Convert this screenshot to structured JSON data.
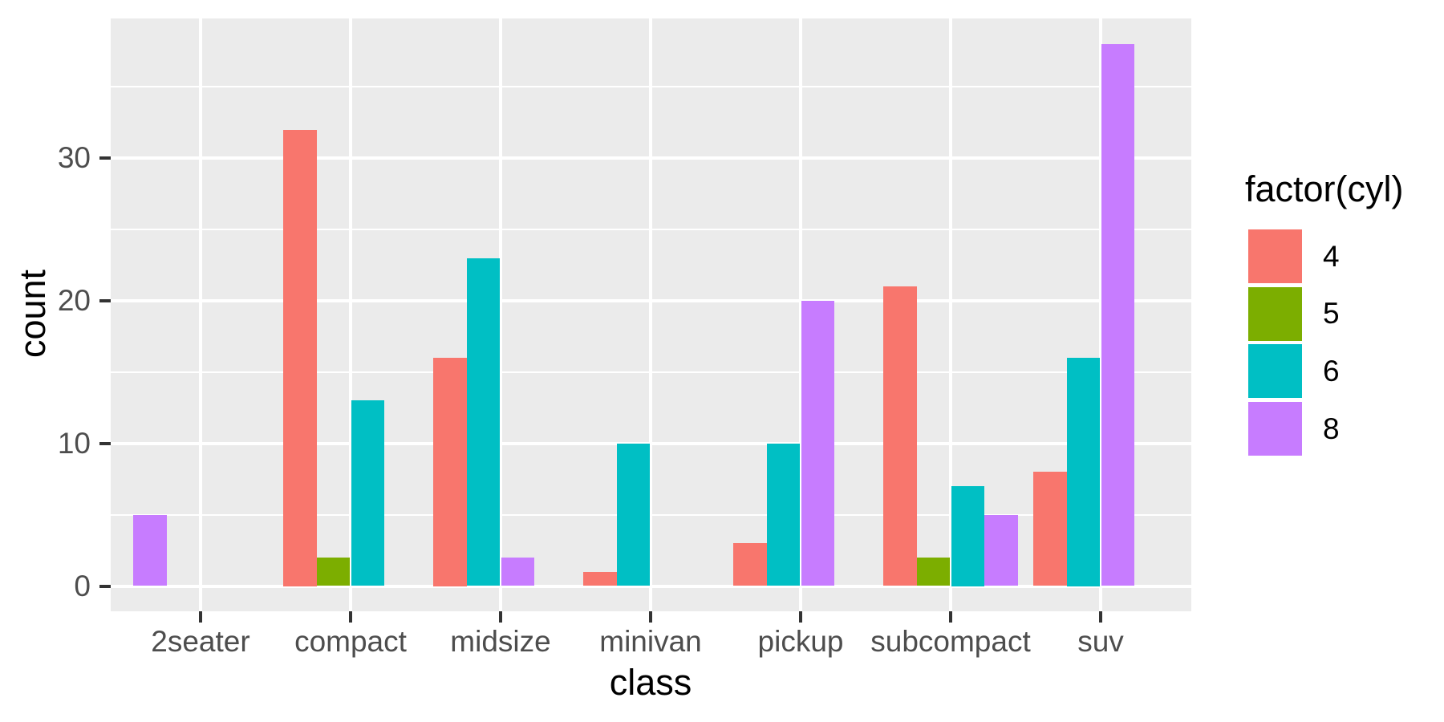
{
  "chart_data": {
    "type": "bar",
    "mode": "grouped-dodge",
    "title": "",
    "xlabel": "class",
    "ylabel": "count",
    "categories": [
      "2seater",
      "compact",
      "midsize",
      "minivan",
      "pickup",
      "subcompact",
      "suv"
    ],
    "series": [
      {
        "name": "4",
        "color": "#F8766D",
        "values": [
          null,
          32,
          16,
          1,
          3,
          21,
          8
        ]
      },
      {
        "name": "5",
        "color": "#7CAE00",
        "values": [
          null,
          2,
          null,
          null,
          null,
          2,
          null
        ]
      },
      {
        "name": "6",
        "color": "#00BFC4",
        "values": [
          null,
          13,
          23,
          10,
          10,
          7,
          16
        ]
      },
      {
        "name": "8",
        "color": "#C77CFF",
        "values": [
          5,
          null,
          2,
          null,
          20,
          5,
          38
        ]
      }
    ],
    "y_ticks": [
      0,
      10,
      20,
      30
    ],
    "y_minor_ticks": [
      5,
      15,
      25,
      35
    ],
    "ylim": [
      -1.9,
      39.8
    ],
    "grid": true,
    "legend_title": "factor(cyl)",
    "legend_position": "right",
    "panel_background": "#EBEBEB",
    "grid_color": "#FFFFFF",
    "axis_text_color": "#4D4D4D",
    "axis_title_color": "#000000",
    "tick_mark_color": "#333333"
  }
}
